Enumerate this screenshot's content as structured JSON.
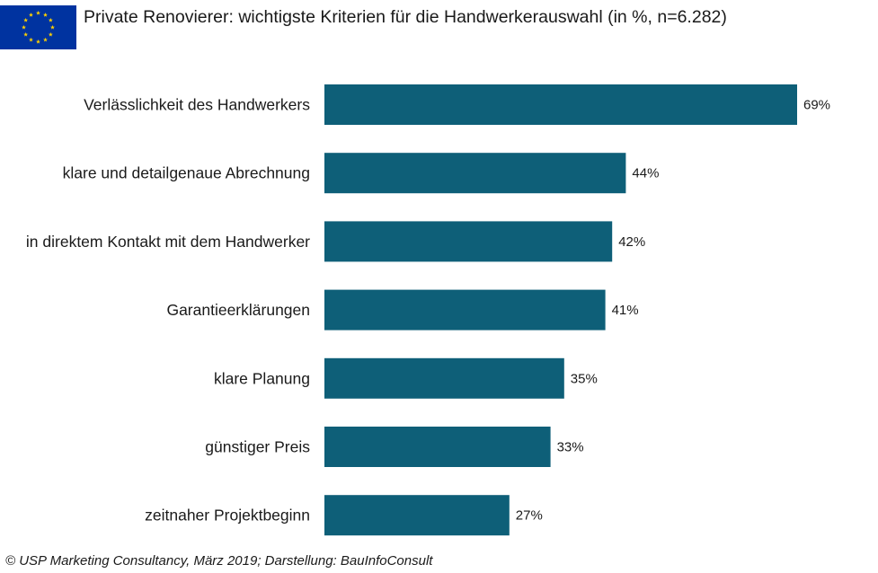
{
  "header": {
    "flag_icon": "eu-flag-icon",
    "title": "Private Renovierer: wichtigste Kriterien für die Handwerkerauswahl  (in %, n=6.282)"
  },
  "footer": {
    "source": "© USP Marketing Consultancy,  März 2019; Darstellung: BauInfoConsult"
  },
  "colors": {
    "bar": "#0e5f78",
    "flag_blue": "#0033a0",
    "flag_star": "#ffd200"
  },
  "chart_data": {
    "type": "bar",
    "orientation": "horizontal",
    "title": "Private Renovierer: wichtigste Kriterien für die Handwerkerauswahl  (in %, n=6.282)",
    "categories": [
      "Verlässlichkeit des Handwerkers",
      "klare und detailgenaue Abrechnung",
      "in direktem Kontakt mit dem Handwerker",
      "Garantieerklärungen",
      "klare Planung",
      "günstiger Preis",
      "zeitnaher Projektbeginn"
    ],
    "values": [
      69,
      44,
      42,
      41,
      35,
      33,
      27
    ],
    "value_labels": [
      "69%",
      "44%",
      "42%",
      "41%",
      "35%",
      "33%",
      "27%"
    ],
    "unit": "%",
    "xlim": [
      0,
      100
    ],
    "grid": false,
    "legend": "none"
  }
}
